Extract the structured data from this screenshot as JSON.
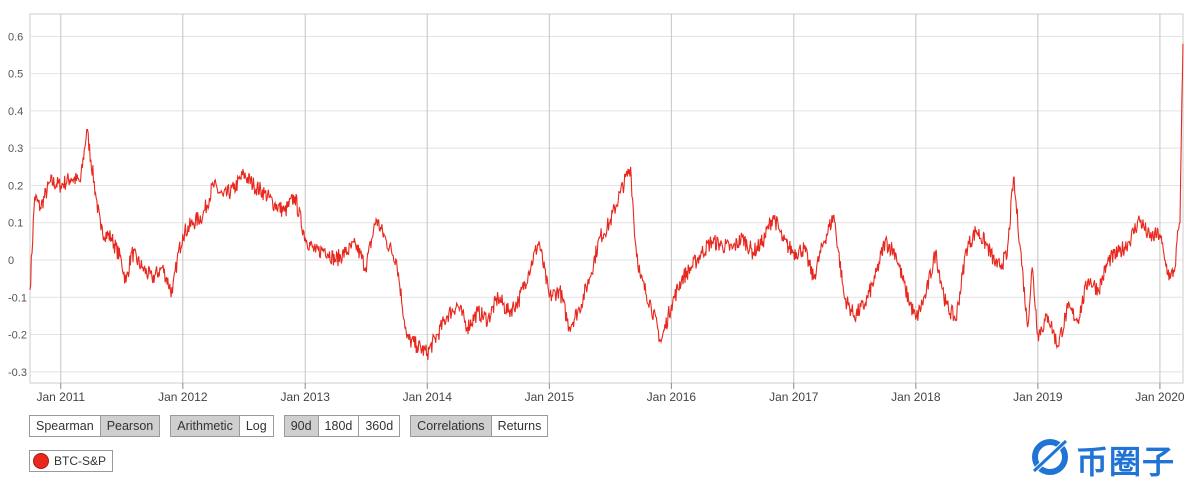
{
  "chart_data": {
    "type": "line",
    "xlim": [
      "2010-10-01",
      "2020-03-10"
    ],
    "ylim": [
      -0.33,
      0.66
    ],
    "y_ticks": [
      "0.6",
      "0.5",
      "0.4",
      "0.3",
      "0.2",
      "0.1",
      "0",
      "-0.1",
      "-0.2",
      "-0.3"
    ],
    "x_ticks": [
      "Jan 2011",
      "Jan 2012",
      "Jan 2013",
      "Jan 2014",
      "Jan 2015",
      "Jan 2016",
      "Jan 2017",
      "Jan 2018",
      "Jan 2019",
      "Jan 2020"
    ],
    "grid": true,
    "series": [
      {
        "name": "BTC-S&P",
        "color": "#e8281e",
        "points": [
          [
            "2010-10-01",
            -0.08
          ],
          [
            "2010-10-15",
            0.17
          ],
          [
            "2010-11-01",
            0.14
          ],
          [
            "2010-12-01",
            0.21
          ],
          [
            "2011-01-01",
            0.2
          ],
          [
            "2011-02-01",
            0.22
          ],
          [
            "2011-03-01",
            0.21
          ],
          [
            "2011-03-20",
            0.35
          ],
          [
            "2011-04-15",
            0.18
          ],
          [
            "2011-05-01",
            0.08
          ],
          [
            "2011-06-01",
            0.06
          ],
          [
            "2011-07-01",
            0.0
          ],
          [
            "2011-07-15",
            -0.06
          ],
          [
            "2011-08-01",
            0.02
          ],
          [
            "2011-09-01",
            -0.02
          ],
          [
            "2011-10-01",
            -0.05
          ],
          [
            "2011-11-01",
            -0.02
          ],
          [
            "2011-12-01",
            -0.09
          ],
          [
            "2011-12-15",
            0.0
          ],
          [
            "2012-01-01",
            0.07
          ],
          [
            "2012-02-01",
            0.1
          ],
          [
            "2012-03-01",
            0.12
          ],
          [
            "2012-04-01",
            0.2
          ],
          [
            "2012-05-01",
            0.17
          ],
          [
            "2012-06-01",
            0.19
          ],
          [
            "2012-07-01",
            0.23
          ],
          [
            "2012-08-01",
            0.2
          ],
          [
            "2012-09-01",
            0.18
          ],
          [
            "2012-10-01",
            0.15
          ],
          [
            "2012-11-01",
            0.13
          ],
          [
            "2012-12-01",
            0.17
          ],
          [
            "2013-01-01",
            0.06
          ],
          [
            "2013-02-01",
            0.02
          ],
          [
            "2013-03-01",
            0.03
          ],
          [
            "2013-04-01",
            0.0
          ],
          [
            "2013-05-01",
            0.02
          ],
          [
            "2013-06-01",
            0.04
          ],
          [
            "2013-07-01",
            -0.02
          ],
          [
            "2013-08-01",
            0.11
          ],
          [
            "2013-09-01",
            0.05
          ],
          [
            "2013-10-01",
            0.0
          ],
          [
            "2013-11-01",
            -0.21
          ],
          [
            "2013-12-01",
            -0.23
          ],
          [
            "2014-01-01",
            -0.25
          ],
          [
            "2014-02-01",
            -0.2
          ],
          [
            "2014-03-01",
            -0.15
          ],
          [
            "2014-04-01",
            -0.12
          ],
          [
            "2014-05-01",
            -0.18
          ],
          [
            "2014-06-01",
            -0.14
          ],
          [
            "2014-07-01",
            -0.16
          ],
          [
            "2014-08-01",
            -0.1
          ],
          [
            "2014-09-01",
            -0.14
          ],
          [
            "2014-10-01",
            -0.11
          ],
          [
            "2014-11-01",
            -0.03
          ],
          [
            "2014-12-01",
            0.05
          ],
          [
            "2015-01-01",
            -0.1
          ],
          [
            "2015-02-01",
            -0.08
          ],
          [
            "2015-03-01",
            -0.18
          ],
          [
            "2015-04-01",
            -0.13
          ],
          [
            "2015-05-01",
            -0.05
          ],
          [
            "2015-06-01",
            0.06
          ],
          [
            "2015-07-01",
            0.1
          ],
          [
            "2015-08-01",
            0.18
          ],
          [
            "2015-09-01",
            0.25
          ],
          [
            "2015-09-15",
            0.05
          ],
          [
            "2015-10-01",
            -0.05
          ],
          [
            "2015-11-01",
            -0.12
          ],
          [
            "2015-12-01",
            -0.22
          ],
          [
            "2016-01-01",
            -0.12
          ],
          [
            "2016-02-01",
            -0.05
          ],
          [
            "2016-03-01",
            -0.02
          ],
          [
            "2016-04-01",
            0.02
          ],
          [
            "2016-05-01",
            0.05
          ],
          [
            "2016-06-01",
            0.04
          ],
          [
            "2016-07-01",
            0.03
          ],
          [
            "2016-08-01",
            0.06
          ],
          [
            "2016-09-01",
            0.02
          ],
          [
            "2016-10-01",
            0.05
          ],
          [
            "2016-11-01",
            0.12
          ],
          [
            "2016-12-01",
            0.05
          ],
          [
            "2017-01-01",
            0.02
          ],
          [
            "2017-02-01",
            0.03
          ],
          [
            "2017-03-01",
            -0.05
          ],
          [
            "2017-04-01",
            0.05
          ],
          [
            "2017-05-01",
            0.12
          ],
          [
            "2017-06-01",
            -0.1
          ],
          [
            "2017-07-01",
            -0.15
          ],
          [
            "2017-08-01",
            -0.12
          ],
          [
            "2017-09-01",
            -0.05
          ],
          [
            "2017-10-01",
            0.05
          ],
          [
            "2017-11-01",
            0.02
          ],
          [
            "2017-12-01",
            -0.08
          ],
          [
            "2018-01-01",
            -0.16
          ],
          [
            "2018-02-01",
            -0.09
          ],
          [
            "2018-03-01",
            0.02
          ],
          [
            "2018-04-01",
            -0.12
          ],
          [
            "2018-05-01",
            -0.16
          ],
          [
            "2018-06-01",
            0.03
          ],
          [
            "2018-07-01",
            0.08
          ],
          [
            "2018-08-01",
            0.04
          ],
          [
            "2018-09-01",
            -0.02
          ],
          [
            "2018-10-01",
            0.01
          ],
          [
            "2018-10-20",
            0.22
          ],
          [
            "2018-11-10",
            0.03
          ],
          [
            "2018-12-01",
            -0.18
          ],
          [
            "2018-12-15",
            -0.02
          ],
          [
            "2019-01-01",
            -0.2
          ],
          [
            "2019-02-01",
            -0.15
          ],
          [
            "2019-03-01",
            -0.23
          ],
          [
            "2019-04-01",
            -0.13
          ],
          [
            "2019-05-01",
            -0.16
          ],
          [
            "2019-06-01",
            -0.05
          ],
          [
            "2019-07-01",
            -0.08
          ],
          [
            "2019-08-01",
            0.0
          ],
          [
            "2019-09-01",
            0.02
          ],
          [
            "2019-10-01",
            0.05
          ],
          [
            "2019-11-01",
            0.11
          ],
          [
            "2019-12-01",
            0.06
          ],
          [
            "2020-01-01",
            0.07
          ],
          [
            "2020-01-15",
            0.0
          ],
          [
            "2020-02-01",
            -0.05
          ],
          [
            "2020-02-15",
            -0.02
          ],
          [
            "2020-02-25",
            0.08
          ],
          [
            "2020-03-01",
            0.1
          ],
          [
            "2020-03-05",
            0.33
          ],
          [
            "2020-03-10",
            0.58
          ]
        ]
      }
    ]
  },
  "controls": {
    "method": {
      "options": [
        "Spearman",
        "Pearson"
      ],
      "active": "Pearson"
    },
    "scale": {
      "options": [
        "Arithmetic",
        "Log"
      ],
      "active": "Arithmetic"
    },
    "window": {
      "options": [
        "90d",
        "180d",
        "360d"
      ],
      "active": "90d"
    },
    "view": {
      "options": [
        "Correlations",
        "Returns"
      ],
      "active": "Correlations"
    }
  },
  "legend": {
    "label": "BTC-S&P",
    "color": "#e8281e"
  },
  "watermark": {
    "text": "币圈子",
    "color": "#1f74d6"
  }
}
